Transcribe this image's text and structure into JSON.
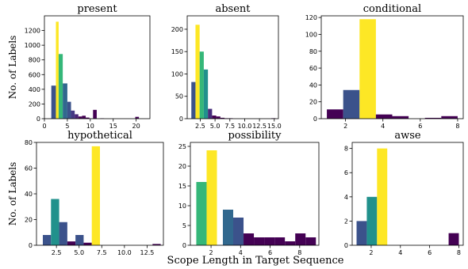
{
  "figure": {
    "xlabel": "Scope Length in Target Sequence",
    "ylabel": "No. of Labels"
  },
  "chart_data": [
    {
      "type": "bar",
      "title": "present",
      "xlim": [
        0,
        23
      ],
      "ylim": [
        0,
        1400
      ],
      "xticks": [
        0,
        5,
        10,
        15,
        20
      ],
      "xtick_labels": [
        "0",
        "5",
        "10",
        "15",
        "20"
      ],
      "yticks": [
        0,
        200,
        400,
        600,
        800,
        1000,
        1200
      ],
      "ytick_labels": [
        "0",
        "200",
        "400",
        "600",
        "800",
        "1000",
        "1200"
      ],
      "bars": [
        {
          "x": 1.5,
          "x2": 2.5,
          "value": 450,
          "color": "#3b528b"
        },
        {
          "x": 2.5,
          "x2": 3.1,
          "value": 1320,
          "color": "#fde725"
        },
        {
          "x": 3.1,
          "x2": 4.0,
          "value": 880,
          "color": "#35b779"
        },
        {
          "x": 4.0,
          "x2": 5.0,
          "value": 480,
          "color": "#31688e"
        },
        {
          "x": 5.0,
          "x2": 5.8,
          "value": 230,
          "color": "#3b528b"
        },
        {
          "x": 5.8,
          "x2": 6.6,
          "value": 110,
          "color": "#443a83"
        },
        {
          "x": 6.6,
          "x2": 7.4,
          "value": 60,
          "color": "#482475"
        },
        {
          "x": 7.4,
          "x2": 8.2,
          "value": 30,
          "color": "#440154"
        },
        {
          "x": 8.2,
          "x2": 9.0,
          "value": 40,
          "color": "#440154"
        },
        {
          "x": 9.0,
          "x2": 9.8,
          "value": 15,
          "color": "#440154"
        },
        {
          "x": 10.6,
          "x2": 11.4,
          "value": 120,
          "color": "#440154"
        },
        {
          "x": 12.2,
          "x2": 13.0,
          "value": 5,
          "color": "#440154"
        },
        {
          "x": 19.8,
          "x2": 20.6,
          "value": 25,
          "color": "#440154"
        }
      ]
    },
    {
      "type": "bar",
      "title": "absent",
      "xlim": [
        0.3,
        15.7
      ],
      "ylim": [
        0,
        230
      ],
      "xticks": [
        2.5,
        5.0,
        7.5,
        10.0,
        12.5,
        15.0
      ],
      "xtick_labels": [
        "2.5",
        "5.0",
        "7.5",
        "10.0",
        "12.5",
        "15.0"
      ],
      "yticks": [
        0,
        50,
        100,
        150,
        200
      ],
      "ytick_labels": [
        "0",
        "50",
        "100",
        "150",
        "200"
      ],
      "bars": [
        {
          "x": 1.0,
          "x2": 1.7,
          "value": 82,
          "color": "#3b528b"
        },
        {
          "x": 1.7,
          "x2": 2.4,
          "value": 210,
          "color": "#fde725"
        },
        {
          "x": 2.4,
          "x2": 3.1,
          "value": 150,
          "color": "#35b779"
        },
        {
          "x": 3.1,
          "x2": 3.8,
          "value": 110,
          "color": "#21918c"
        },
        {
          "x": 3.8,
          "x2": 4.5,
          "value": 22,
          "color": "#472d7b"
        },
        {
          "x": 4.5,
          "x2": 5.2,
          "value": 7,
          "color": "#440154"
        },
        {
          "x": 5.2,
          "x2": 5.9,
          "value": 5,
          "color": "#440154"
        },
        {
          "x": 5.9,
          "x2": 6.6,
          "value": 2,
          "color": "#440154"
        },
        {
          "x": 6.6,
          "x2": 7.3,
          "value": 1,
          "color": "#440154"
        },
        {
          "x": 7.3,
          "x2": 8.0,
          "value": 1,
          "color": "#440154"
        },
        {
          "x": 14.5,
          "x2": 15.2,
          "value": 1,
          "color": "#440154"
        }
      ]
    },
    {
      "type": "bar",
      "title": "conditional",
      "xlim": [
        0.7,
        8.3
      ],
      "ylim": [
        0,
        122
      ],
      "xticks": [
        2,
        4,
        6,
        8
      ],
      "xtick_labels": [
        "2",
        "4",
        "6",
        "8"
      ],
      "yticks": [
        0,
        20,
        40,
        60,
        80,
        100,
        120
      ],
      "ytick_labels": [
        "0",
        "20",
        "40",
        "60",
        "80",
        "100",
        "120"
      ],
      "bars": [
        {
          "x": 1.0,
          "x2": 1.875,
          "value": 11,
          "color": "#440154"
        },
        {
          "x": 1.875,
          "x2": 2.75,
          "value": 34,
          "color": "#3b528b"
        },
        {
          "x": 2.75,
          "x2": 3.625,
          "value": 118,
          "color": "#fde725"
        },
        {
          "x": 3.625,
          "x2": 4.5,
          "value": 5,
          "color": "#440154"
        },
        {
          "x": 4.5,
          "x2": 5.375,
          "value": 3,
          "color": "#440154"
        },
        {
          "x": 6.25,
          "x2": 7.125,
          "value": 1,
          "color": "#440154"
        },
        {
          "x": 7.125,
          "x2": 8.0,
          "value": 3,
          "color": "#440154"
        }
      ]
    },
    {
      "type": "bar",
      "title": "hypothetical",
      "xlim": [
        0.3,
        14.3
      ],
      "ylim": [
        0,
        80
      ],
      "xticks": [
        2.5,
        5.0,
        7.5,
        10.0,
        12.5
      ],
      "xtick_labels": [
        "2.5",
        "5.0",
        "7.5",
        "10.0",
        "12.5"
      ],
      "yticks": [
        0,
        20,
        40,
        60,
        80
      ],
      "ytick_labels": [
        "0",
        "20",
        "40",
        "60",
        "80"
      ],
      "bars": [
        {
          "x": 1.0,
          "x2": 1.9,
          "value": 8,
          "color": "#3b528b"
        },
        {
          "x": 1.9,
          "x2": 2.8,
          "value": 36,
          "color": "#21918c"
        },
        {
          "x": 2.8,
          "x2": 3.7,
          "value": 18,
          "color": "#3b528b"
        },
        {
          "x": 3.7,
          "x2": 4.6,
          "value": 3,
          "color": "#440154"
        },
        {
          "x": 4.6,
          "x2": 5.5,
          "value": 8,
          "color": "#3b528b"
        },
        {
          "x": 5.5,
          "x2": 6.4,
          "value": 2,
          "color": "#440154"
        },
        {
          "x": 6.4,
          "x2": 7.3,
          "value": 77,
          "color": "#fde725"
        },
        {
          "x": 13.1,
          "x2": 14.0,
          "value": 1,
          "color": "#440154"
        }
      ]
    },
    {
      "type": "bar",
      "title": "possibility",
      "xlim": [
        0.6,
        9.3
      ],
      "ylim": [
        0,
        26
      ],
      "xticks": [
        2,
        4,
        6,
        8
      ],
      "xtick_labels": [
        "2",
        "4",
        "6",
        "8"
      ],
      "yticks": [
        0,
        5,
        10,
        15,
        20,
        25
      ],
      "ytick_labels": [
        "0",
        "5",
        "10",
        "15",
        "20",
        "25"
      ],
      "bars": [
        {
          "x": 1.0,
          "x2": 1.7,
          "value": 16,
          "color": "#35b779"
        },
        {
          "x": 1.7,
          "x2": 2.4,
          "value": 24,
          "color": "#fde725"
        },
        {
          "x": 2.8,
          "x2": 3.5,
          "value": 9,
          "color": "#31688e"
        },
        {
          "x": 3.5,
          "x2": 4.2,
          "value": 7,
          "color": "#3b528b"
        },
        {
          "x": 4.2,
          "x2": 4.9,
          "value": 3,
          "color": "#440154"
        },
        {
          "x": 4.9,
          "x2": 5.6,
          "value": 2,
          "color": "#440154"
        },
        {
          "x": 5.6,
          "x2": 6.3,
          "value": 2,
          "color": "#440154"
        },
        {
          "x": 6.3,
          "x2": 7.0,
          "value": 2,
          "color": "#440154"
        },
        {
          "x": 7.0,
          "x2": 7.7,
          "value": 1,
          "color": "#440154"
        },
        {
          "x": 7.7,
          "x2": 8.4,
          "value": 3,
          "color": "#440154"
        },
        {
          "x": 8.4,
          "x2": 9.1,
          "value": 2,
          "color": "#440154"
        }
      ]
    },
    {
      "type": "bar",
      "title": "awse",
      "xlim": [
        0.7,
        8.3
      ],
      "ylim": [
        0,
        8.5
      ],
      "xticks": [
        2,
        4,
        6,
        8
      ],
      "xtick_labels": [
        "2",
        "4",
        "6",
        "8"
      ],
      "yticks": [
        0,
        2,
        4,
        6,
        8
      ],
      "ytick_labels": [
        "0",
        "2",
        "4",
        "6",
        "8"
      ],
      "bars": [
        {
          "x": 1.0,
          "x2": 1.7,
          "value": 2,
          "color": "#3b528b"
        },
        {
          "x": 1.7,
          "x2": 2.4,
          "value": 4,
          "color": "#21918c"
        },
        {
          "x": 2.4,
          "x2": 3.1,
          "value": 8,
          "color": "#fde725"
        },
        {
          "x": 7.3,
          "x2": 8.0,
          "value": 1,
          "color": "#440154"
        }
      ]
    }
  ]
}
